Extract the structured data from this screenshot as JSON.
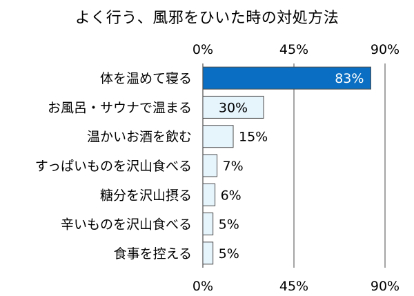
{
  "chart_data": {
    "type": "bar",
    "orientation": "horizontal",
    "title": "よく行う、風邪をひいた時の対処方法",
    "xlabel": "",
    "ylabel": "",
    "categories": [
      "体を温めて寝る",
      "お風呂・サウナで温まる",
      "温かいお酒を飲む",
      "すっぱいものを沢山食べる",
      "糖分を沢山摂る",
      "辛いものを沢山食べる",
      "食事を控える"
    ],
    "values": [
      83,
      30,
      15,
      7,
      6,
      5,
      5
    ],
    "value_labels": [
      "83%",
      "30%",
      "15%",
      "7%",
      "6%",
      "5%",
      "5%"
    ],
    "xlim": [
      0,
      90
    ],
    "x_ticks": [
      0,
      45,
      90
    ],
    "x_tick_labels": [
      "0%",
      "45%",
      "90%"
    ],
    "tick_positions": [
      "top",
      "bottom"
    ],
    "grid": true,
    "colors": {
      "highlight_bar": "#0a6fc2",
      "bar": "#e6f4fc",
      "bar_border": "#4a4a4a",
      "axis": "#4a4a4a",
      "highlight_label": "#ffffff",
      "label": "#000000"
    }
  }
}
